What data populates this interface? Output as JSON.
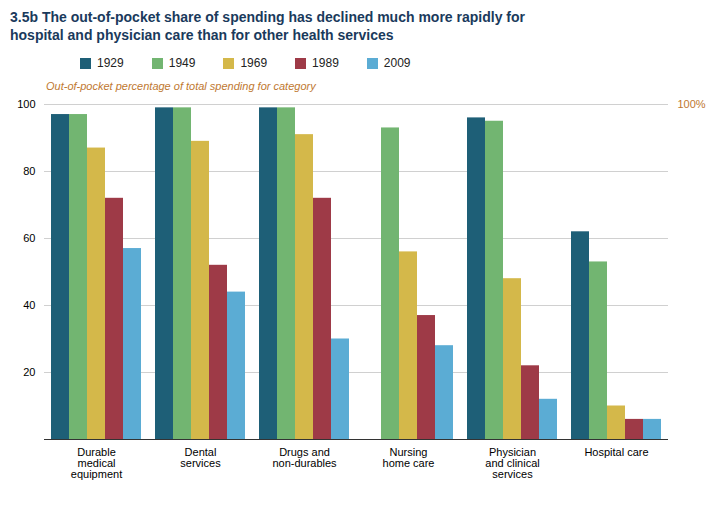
{
  "chart_data": {
    "type": "bar",
    "title": "3.5b The out-of-pocket share of spending has declined much more rapidly for\nhospital and physician care than for other health services",
    "ylabel": "Out-of-pocket percentage of total spending for category",
    "categories": [
      "Durable\nmedical\nequipment",
      "Dental\nservices",
      "Drugs and\nnon-durables",
      "Nursing\nhome care",
      "Physician\nand clinical\nservices",
      "Hospital care"
    ],
    "series": [
      {
        "name": "1929",
        "color": "#1e5f77",
        "values": [
          97,
          99,
          99,
          0,
          96,
          62
        ]
      },
      {
        "name": "1949",
        "color": "#72b571",
        "values": [
          97,
          99,
          99,
          93,
          95,
          53
        ]
      },
      {
        "name": "1969",
        "color": "#d4b84a",
        "values": [
          87,
          89,
          91,
          56,
          48,
          10
        ]
      },
      {
        "name": "1989",
        "color": "#9e3a47",
        "values": [
          72,
          52,
          72,
          37,
          22,
          6
        ]
      },
      {
        "name": "2009",
        "color": "#5bacd4",
        "values": [
          57,
          44,
          30,
          28,
          12,
          6
        ]
      }
    ],
    "ylim": [
      0,
      100
    ],
    "yticks": [
      20,
      40,
      60,
      80,
      100
    ],
    "y2lim": [
      0,
      100
    ],
    "y2ticks": [
      {
        "value": 100,
        "label": "100%"
      }
    ],
    "grid": true,
    "legend": "top"
  }
}
